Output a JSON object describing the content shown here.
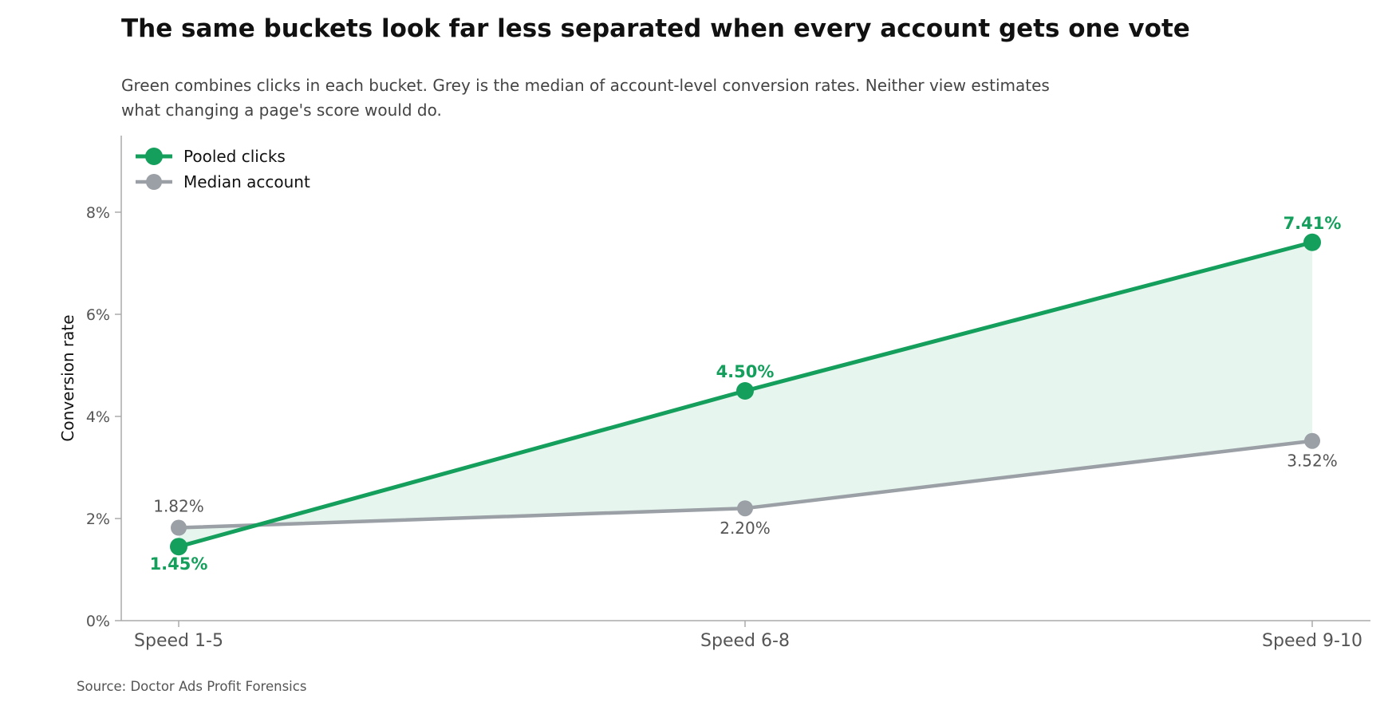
{
  "title": "The same buckets look far less separated when every account gets one vote",
  "subtitle": "Green combines clicks in each bucket. Grey is the median of account-level conversion rates. Neither view estimates what changing a page's score would do.",
  "source": "Source: Doctor Ads Profit Forensics",
  "colors": {
    "pooled": "#159f5c",
    "median": "#9aa0a6",
    "fill": "#e6f5ed",
    "grey_label": "#555555"
  },
  "chart_data": {
    "type": "line",
    "categories": [
      "Speed 1-5",
      "Speed 6-8",
      "Speed 9-10"
    ],
    "ylabel": "Conversion rate",
    "ylim": [
      0,
      9.5
    ],
    "yticks": [
      0,
      2,
      4,
      6,
      8
    ],
    "ytick_labels": [
      "0%",
      "2%",
      "4%",
      "6%",
      "8%"
    ],
    "grid": false,
    "legend_position": "top-left",
    "shaded_between_series": true,
    "series": [
      {
        "name": "Pooled clicks",
        "values": [
          1.45,
          4.5,
          7.41
        ],
        "labels": [
          "1.45%",
          "4.50%",
          "7.41%"
        ]
      },
      {
        "name": "Median account",
        "values": [
          1.82,
          2.2,
          3.52
        ],
        "labels": [
          "1.82%",
          "2.20%",
          "3.52%"
        ]
      }
    ]
  }
}
